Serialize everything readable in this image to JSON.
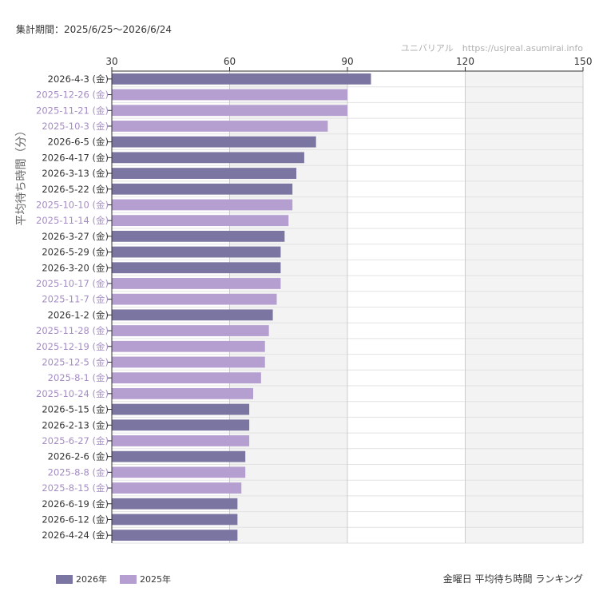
{
  "header": {
    "period": "集計期間：2025/6/25〜2026/6/24",
    "credit": "ユニバリアル　https://usjreal.asumirai.info"
  },
  "legend": [
    {
      "label": "2026年",
      "color": "#7b75a1"
    },
    {
      "label": "2025年",
      "color": "#b59fd0"
    }
  ],
  "caption": "金曜日 平均待ち時間 ランキング",
  "colors": {
    "year2026": "#7b75a1",
    "year2025": "#b59fd0",
    "label2026": "#333333",
    "label2025": "#a48cc4",
    "grid": "#e2e2e2",
    "shade": "#f3f3f3"
  },
  "chart_data": {
    "type": "bar",
    "orientation": "horizontal",
    "ylabel": "平均待ち時間（分）",
    "xlim": [
      30,
      150
    ],
    "xticks": [
      30,
      60,
      90,
      120,
      150
    ],
    "grid": true,
    "legend_position": "bottom-left",
    "categories": [
      "2026-4-3 (金)",
      "2025-12-26 (金)",
      "2025-11-21 (金)",
      "2025-10-3 (金)",
      "2026-6-5 (金)",
      "2026-4-17 (金)",
      "2026-3-13 (金)",
      "2026-5-22 (金)",
      "2025-10-10 (金)",
      "2025-11-14 (金)",
      "2026-3-27 (金)",
      "2026-5-29 (金)",
      "2026-3-20 (金)",
      "2025-10-17 (金)",
      "2025-11-7 (金)",
      "2026-1-2 (金)",
      "2025-11-28 (金)",
      "2025-12-19 (金)",
      "2025-12-5 (金)",
      "2025-8-1 (金)",
      "2025-10-24 (金)",
      "2026-5-15 (金)",
      "2026-2-13 (金)",
      "2025-6-27 (金)",
      "2026-2-6 (金)",
      "2025-8-8 (金)",
      "2025-8-15 (金)",
      "2026-6-19 (金)",
      "2026-6-12 (金)",
      "2026-4-24 (金)"
    ],
    "values": [
      96,
      90,
      90,
      85,
      82,
      79,
      77,
      76,
      76,
      75,
      74,
      73,
      73,
      73,
      72,
      71,
      70,
      69,
      69,
      68,
      66,
      65,
      65,
      65,
      64,
      64,
      63,
      62,
      62,
      62
    ],
    "years": [
      "2026",
      "2025",
      "2025",
      "2025",
      "2026",
      "2026",
      "2026",
      "2026",
      "2025",
      "2025",
      "2026",
      "2026",
      "2026",
      "2025",
      "2025",
      "2026",
      "2025",
      "2025",
      "2025",
      "2025",
      "2025",
      "2026",
      "2026",
      "2025",
      "2026",
      "2025",
      "2025",
      "2026",
      "2026",
      "2026"
    ]
  }
}
